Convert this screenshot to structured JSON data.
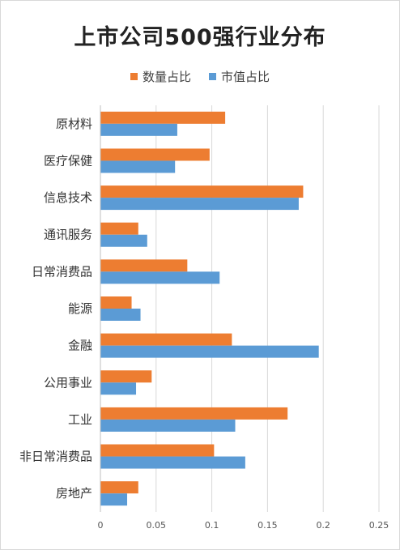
{
  "chart_data": {
    "type": "bar",
    "orientation": "horizontal",
    "title": "上市公司500强行业分布",
    "categories": [
      "原材料",
      "医疗保健",
      "信息技术",
      "通讯服务",
      "日常消费品",
      "能源",
      "金融",
      "公用事业",
      "工业",
      "非日常消费品",
      "房地产"
    ],
    "series": [
      {
        "name": "数量占比",
        "color": "#ED7D31",
        "values": [
          0.112,
          0.098,
          0.182,
          0.034,
          0.078,
          0.028,
          0.118,
          0.046,
          0.168,
          0.102,
          0.034
        ]
      },
      {
        "name": "市值占比",
        "color": "#5B9BD5",
        "values": [
          0.069,
          0.067,
          0.178,
          0.042,
          0.107,
          0.036,
          0.196,
          0.032,
          0.121,
          0.13,
          0.024
        ]
      }
    ],
    "xlim": [
      0,
      0.25
    ],
    "xticks": [
      "0",
      "0.05",
      "0.1",
      "0.15",
      "0.2",
      "0.25"
    ],
    "grid": true,
    "legend_position": "top"
  }
}
